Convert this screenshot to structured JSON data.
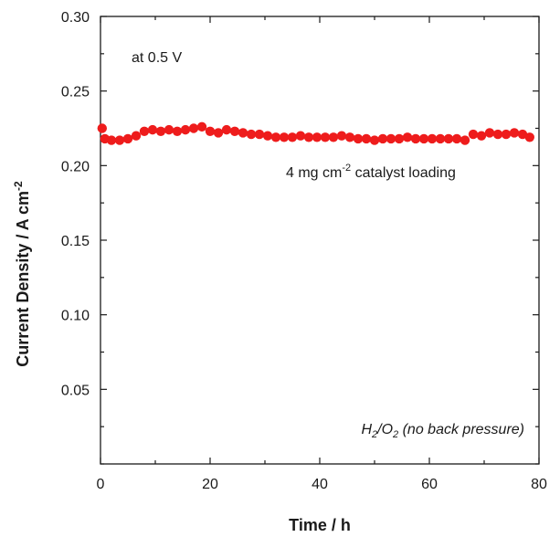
{
  "chart_data": {
    "type": "scatter",
    "title": "",
    "xlabel": "Time / h",
    "ylabel": "Current Density / A cm",
    "ylabel_superscript": "-2",
    "xlim": [
      0,
      80
    ],
    "ylim": [
      0,
      0.3
    ],
    "x_ticks": [
      0,
      20,
      40,
      60,
      80
    ],
    "x_tick_labels": [
      "0",
      "20",
      "40",
      "60",
      "80"
    ],
    "y_ticks": [
      0.05,
      0.1,
      0.15,
      0.2,
      0.25,
      0.3
    ],
    "y_tick_labels": [
      "0.05",
      "0.10",
      "0.15",
      "0.20",
      "0.25",
      "0.30"
    ],
    "grid": false,
    "legend": "none",
    "marker_color": "#ee1c1c",
    "annotations": {
      "voltage": "at 0.5 V",
      "loading_prefix": "4 mg cm",
      "loading_superscript": "-2",
      "loading_suffix": " catalyst loading",
      "gas_h": "H",
      "gas_h_sub": "2",
      "gas_slash": "/O",
      "gas_o_sub": "2",
      "gas_suffix": " (no back pressure)"
    },
    "series": [
      {
        "x": [
          0.3,
          0.8,
          2,
          3.5,
          5,
          6.5,
          8,
          9.5,
          11,
          12.5,
          14,
          15.5,
          17,
          18.5,
          20,
          21.5,
          23,
          24.5,
          26,
          27.5,
          29,
          30.5,
          32,
          33.5,
          35,
          36.5,
          38,
          39.5,
          41,
          42.5,
          44,
          45.5,
          47,
          48.5,
          50,
          51.5,
          53,
          54.5,
          56,
          57.5,
          59,
          60.5,
          62,
          63.5,
          65,
          66.5,
          68,
          69.5,
          71,
          72.5,
          74,
          75.5,
          77,
          78.3
        ],
        "y": [
          0.225,
          0.218,
          0.217,
          0.217,
          0.218,
          0.22,
          0.223,
          0.224,
          0.223,
          0.224,
          0.223,
          0.224,
          0.225,
          0.226,
          0.223,
          0.222,
          0.224,
          0.223,
          0.222,
          0.221,
          0.221,
          0.22,
          0.219,
          0.219,
          0.219,
          0.22,
          0.219,
          0.219,
          0.219,
          0.219,
          0.22,
          0.219,
          0.218,
          0.218,
          0.217,
          0.218,
          0.218,
          0.218,
          0.219,
          0.218,
          0.218,
          0.218,
          0.218,
          0.218,
          0.218,
          0.217,
          0.221,
          0.22,
          0.222,
          0.221,
          0.221,
          0.222,
          0.221,
          0.219
        ]
      }
    ]
  }
}
